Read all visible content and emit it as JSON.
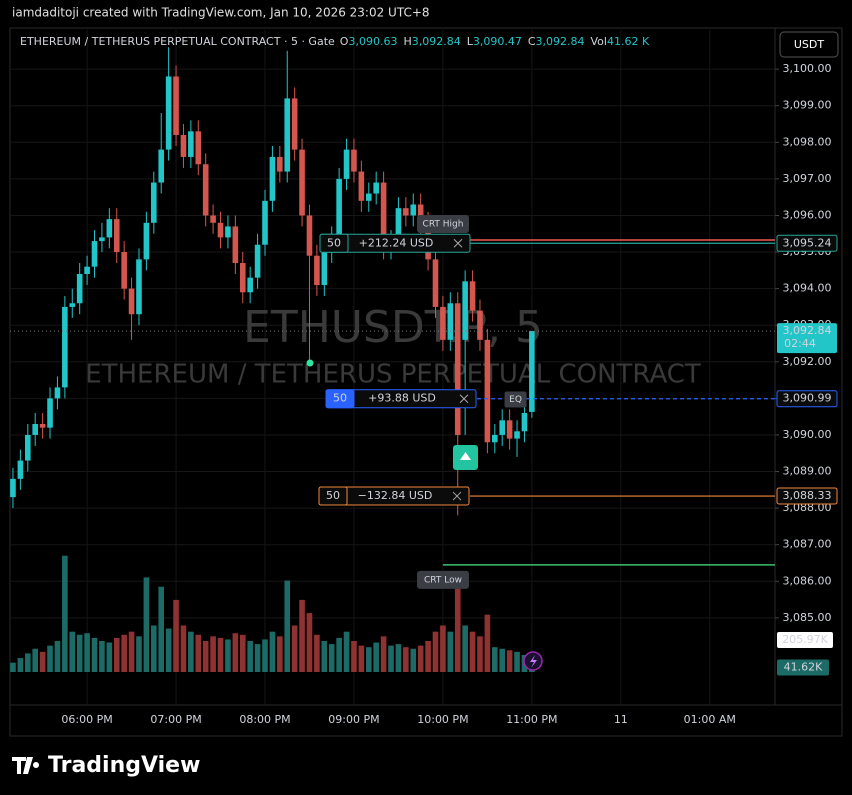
{
  "header": {
    "attribution": "iamdaditoji created with TradingView.com, Jan 10, 2026 23:02 UTC+8",
    "legend_title": "ETHEREUM / TETHERUS PERPETUAL CONTRACT · 5 · Gate",
    "ohlc": [
      {
        "key": "O",
        "value": "3,090.63"
      },
      {
        "key": "H",
        "value": "3,092.84"
      },
      {
        "key": "L",
        "value": "3,090.47"
      },
      {
        "key": "C",
        "value": "3,092.84"
      },
      {
        "key": "Vol",
        "value": "41.62 K"
      }
    ]
  },
  "currency_button": "USDT",
  "watermark": {
    "symbol": "ETHUSDT.P, 5",
    "name": "ETHEREUM / TETHERUS PERPETUAL CONTRACT"
  },
  "chart_data": {
    "type": "candlestick",
    "up_color": "#22c5c8",
    "down_color": "#d4574f",
    "grid": true,
    "x": [
      1030,
      1035,
      1040,
      1045,
      1050,
      1055,
      1060,
      1065,
      1070,
      1075,
      1080,
      1085,
      1090,
      1095,
      1100,
      1105,
      1110,
      1115,
      1120,
      1125,
      1130,
      1135,
      1140,
      1145,
      1150,
      1155,
      1160,
      1165,
      1170,
      1175,
      1180,
      1185,
      1190,
      1195,
      1200,
      1205,
      1210,
      1215,
      1220,
      1225,
      1230,
      1235,
      1240,
      1245,
      1250,
      1255,
      1260,
      1265,
      1270,
      1275,
      1280,
      1285,
      1290,
      1295,
      1300,
      1305,
      1310,
      1315,
      1320,
      1325,
      1330,
      1335,
      1340,
      1345,
      1350,
      1355,
      1360,
      1365,
      1370,
      1375,
      1380
    ],
    "open": [
      3088.3,
      3088.8,
      3089.3,
      3090.0,
      3090.3,
      3090.2,
      3091.0,
      3091.3,
      3093.5,
      3093.6,
      3094.4,
      3094.6,
      3095.3,
      3095.4,
      3095.9,
      3095.0,
      3094.0,
      3093.3,
      3094.8,
      3095.8,
      3096.9,
      3097.8,
      3099.8,
      3098.2,
      3097.6,
      3098.3,
      3097.4,
      3096.0,
      3095.8,
      3095.4,
      3095.7,
      3094.7,
      3093.9,
      3094.3,
      3095.2,
      3096.4,
      3097.6,
      3097.2,
      3099.2,
      3097.8,
      3096.0,
      3094.9,
      3094.1,
      3095.0,
      3095.4,
      3097.0,
      3097.8,
      3097.2,
      3096.4,
      3096.6,
      3096.9,
      3095.1,
      3095.3,
      3096.2,
      3096.0,
      3096.3,
      3095.8,
      3094.8,
      3093.5,
      3092.6,
      3093.6,
      3092.6,
      3094.2,
      3093.4,
      3092.6,
      3089.8,
      3090.0,
      3090.4,
      3089.9,
      3090.1,
      3090.63
    ],
    "high": [
      3089.1,
      3089.6,
      3090.3,
      3090.6,
      3090.6,
      3091.3,
      3091.6,
      3093.8,
      3094.0,
      3094.7,
      3094.9,
      3095.6,
      3095.8,
      3096.2,
      3096.2,
      3095.3,
      3094.3,
      3095.1,
      3096.1,
      3097.2,
      3098.8,
      3100.6,
      3100.1,
      3098.5,
      3098.6,
      3098.6,
      3097.7,
      3096.3,
      3096.1,
      3096.0,
      3096.0,
      3095.0,
      3094.6,
      3095.5,
      3096.7,
      3097.9,
      3097.9,
      3100.5,
      3099.5,
      3098.1,
      3096.3,
      3095.2,
      3095.3,
      3095.7,
      3097.3,
      3098.1,
      3098.1,
      3097.5,
      3096.9,
      3097.2,
      3097.2,
      3095.6,
      3096.5,
      3096.5,
      3096.6,
      3096.6,
      3096.1,
      3095.1,
      3093.8,
      3093.9,
      3093.9,
      3094.5,
      3094.5,
      3093.7,
      3092.9,
      3090.3,
      3090.7,
      3090.7,
      3090.4,
      3090.9,
      3092.84
    ],
    "low": [
      3088.0,
      3088.5,
      3089.0,
      3089.7,
      3089.9,
      3089.9,
      3090.7,
      3091.0,
      3093.2,
      3093.3,
      3094.1,
      3094.3,
      3095.0,
      3095.1,
      3094.7,
      3093.7,
      3092.6,
      3093.0,
      3094.5,
      3095.5,
      3096.6,
      3097.5,
      3097.9,
      3097.3,
      3097.3,
      3097.1,
      3095.7,
      3095.5,
      3095.1,
      3095.1,
      3094.4,
      3093.6,
      3093.6,
      3094.0,
      3094.9,
      3096.1,
      3096.9,
      3096.9,
      3097.5,
      3095.7,
      3092.0,
      3093.8,
      3093.8,
      3094.7,
      3095.1,
      3096.7,
      3096.9,
      3096.1,
      3096.1,
      3096.3,
      3094.8,
      3094.8,
      3095.0,
      3095.7,
      3095.7,
      3095.5,
      3094.5,
      3093.2,
      3092.3,
      3092.3,
      3087.8,
      3090.0,
      3093.1,
      3092.3,
      3089.5,
      3089.5,
      3089.7,
      3089.6,
      3089.4,
      3089.8,
      3090.47
    ],
    "close": [
      3088.8,
      3089.3,
      3090.0,
      3090.3,
      3090.2,
      3091.0,
      3091.3,
      3093.5,
      3093.6,
      3094.4,
      3094.6,
      3095.3,
      3095.4,
      3095.9,
      3095.0,
      3094.0,
      3093.3,
      3094.8,
      3095.8,
      3096.9,
      3097.8,
      3099.8,
      3098.2,
      3097.6,
      3098.3,
      3097.4,
      3096.0,
      3095.8,
      3095.4,
      3095.7,
      3094.7,
      3093.9,
      3094.3,
      3095.2,
      3096.4,
      3097.6,
      3097.2,
      3099.2,
      3097.8,
      3096.0,
      3094.9,
      3094.1,
      3095.0,
      3095.4,
      3097.0,
      3097.8,
      3097.2,
      3096.4,
      3096.6,
      3096.9,
      3095.1,
      3095.3,
      3096.2,
      3096.0,
      3096.3,
      3095.8,
      3094.8,
      3093.5,
      3092.6,
      3093.6,
      3090.0,
      3094.2,
      3093.4,
      3092.6,
      3089.8,
      3090.0,
      3090.4,
      3089.9,
      3090.1,
      3090.6,
      3092.84
    ],
    "xlim": [
      1028,
      1544
    ],
    "xticks": [
      {
        "value": 1080,
        "label": "06:00 PM"
      },
      {
        "value": 1140,
        "label": "07:00 PM"
      },
      {
        "value": 1200,
        "label": "08:00 PM"
      },
      {
        "value": 1260,
        "label": "09:00 PM"
      },
      {
        "value": 1320,
        "label": "10:00 PM"
      },
      {
        "value": 1380,
        "label": "11:00 PM"
      },
      {
        "value": 1440,
        "label": "11"
      },
      {
        "value": 1500,
        "label": "01:00 AM"
      }
    ],
    "ylim": [
      3083.52,
      3101.07
    ],
    "yticks": [
      {
        "value": 3085,
        "label": "3,085.00"
      },
      {
        "value": 3086,
        "label": "3,086.00"
      },
      {
        "value": 3087,
        "label": "3,087.00"
      },
      {
        "value": 3088,
        "label": "3,088.00"
      },
      {
        "value": 3089,
        "label": "3,089.00"
      },
      {
        "value": 3090,
        "label": "3,090.00"
      },
      {
        "value": 3091,
        "label": "3,091.00"
      },
      {
        "value": 3092,
        "label": "3,092.00"
      },
      {
        "value": 3093,
        "label": "3,093.00"
      },
      {
        "value": 3094,
        "label": "3,094.00"
      },
      {
        "value": 3095,
        "label": "3,095.00"
      },
      {
        "value": 3096,
        "label": "3,096.00"
      },
      {
        "value": 3097,
        "label": "3,097.00"
      },
      {
        "value": 3098,
        "label": "3,098.00"
      },
      {
        "value": 3099,
        "label": "3,099.00"
      },
      {
        "value": 3100,
        "label": "3,100.00"
      }
    ],
    "volume": {
      "ylim": [
        0,
        4140
      ],
      "up_color": "#1c6b66",
      "down_color": "#8e3331",
      "values": [
        60,
        90,
        120,
        150,
        130,
        170,
        200,
        750,
        260,
        240,
        250,
        220,
        200,
        190,
        220,
        240,
        260,
        230,
        610,
        300,
        550,
        280,
        465,
        300,
        260,
        240,
        200,
        230,
        220,
        210,
        250,
        240,
        200,
        180,
        210,
        260,
        230,
        590,
        300,
        465,
        380,
        240,
        200,
        180,
        220,
        260,
        200,
        170,
        160,
        190,
        230,
        170,
        180,
        160,
        150,
        170,
        200,
        260,
        300,
        260,
        650,
        300,
        260,
        230,
        370,
        160,
        150,
        140,
        130,
        110,
        41.62
      ],
      "last_label": "41.62K",
      "ma_value": 205.97,
      "ma_label": "205.97K"
    },
    "current_price": {
      "value": 3092.84,
      "label": "3,092.84",
      "countdown": "02:44"
    },
    "positions": [
      {
        "qty": "50",
        "pnl": "+212.24 USD",
        "price": 3095.24,
        "price_label": "3,095.24",
        "color": "#26a69a"
      },
      {
        "qty": "50",
        "pnl": "+93.88 USD",
        "price": 3090.99,
        "price_label": "3,090.99",
        "color": "#2962ff"
      },
      {
        "qty": "50",
        "pnl": "−132.84 USD",
        "price": 3088.33,
        "price_label": "3,088.33",
        "color": "#f0883e"
      }
    ],
    "levels": [
      {
        "name": "CRT High",
        "value": 3095.33,
        "x_start": 1338,
        "color": "#f05a4f"
      },
      {
        "name": "CRT Low",
        "value": 3086.45,
        "x_start": 1320,
        "color": "#3fbf6f"
      }
    ],
    "annotations": [
      {
        "text": "EQ",
        "x": 1369,
        "value": 3090.97
      }
    ]
  },
  "footer": {
    "brand": "TradingView"
  }
}
